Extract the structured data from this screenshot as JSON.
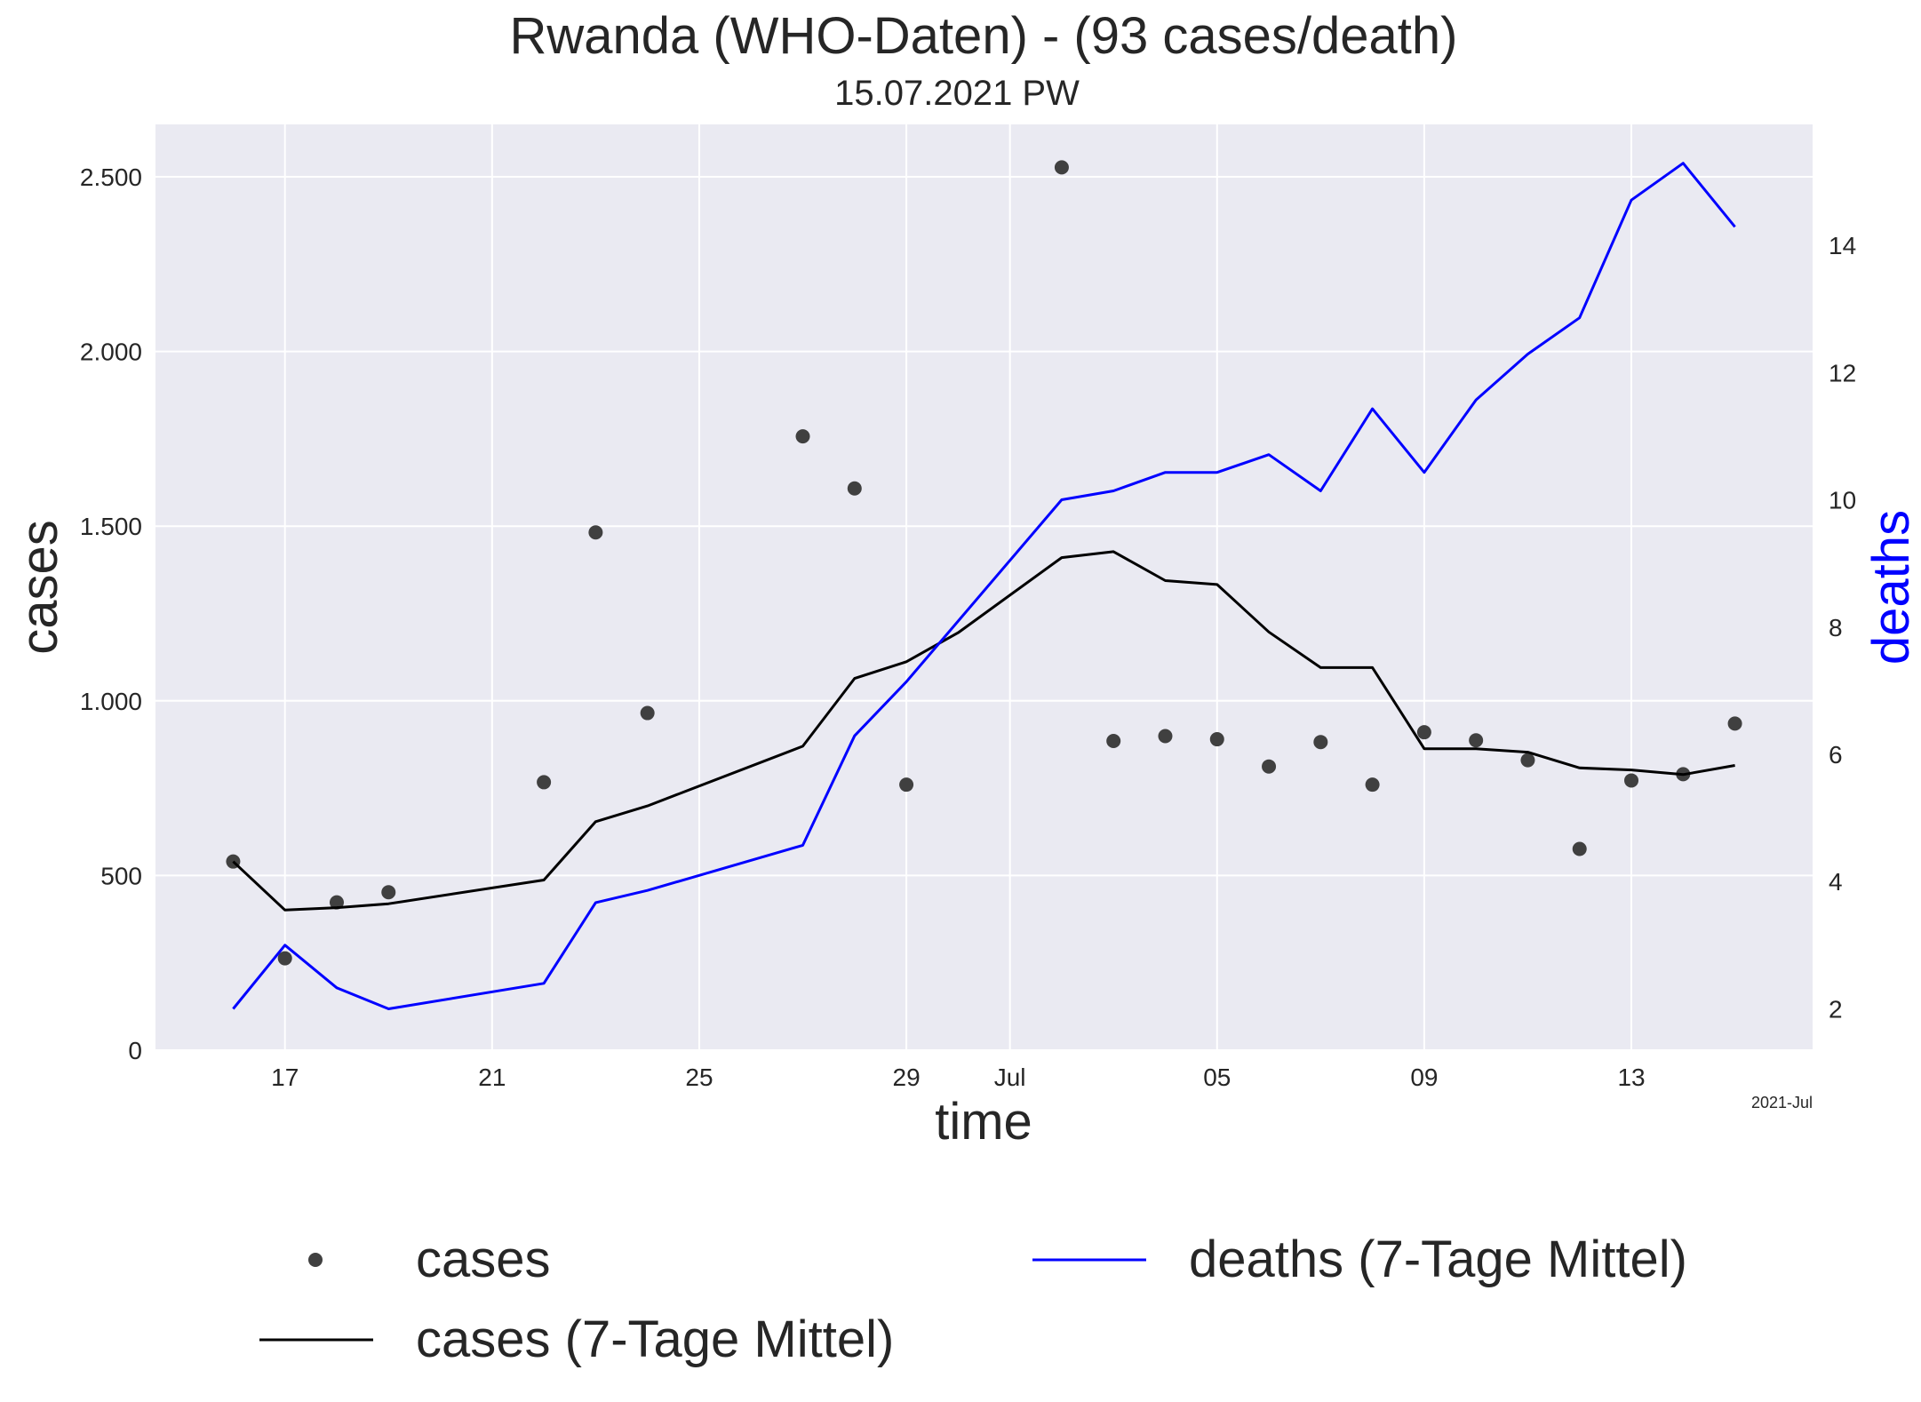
{
  "chart_data": {
    "type": "line",
    "title": "Rwanda (WHO-Daten) - (93 cases/death)",
    "subtitle": "15.07.2021 PW",
    "xlabel": "time",
    "ylabel": "cases",
    "ylabel_right": "deaths",
    "x_offset_text": "2021-Jul",
    "x_ticks": [
      {
        "date": "2021-06-17",
        "label": "17"
      },
      {
        "date": "2021-06-21",
        "label": "21"
      },
      {
        "date": "2021-06-25",
        "label": "25"
      },
      {
        "date": "2021-06-29",
        "label": "29"
      },
      {
        "date": "2021-07-01",
        "label": "Jul"
      },
      {
        "date": "2021-07-05",
        "label": "05"
      },
      {
        "date": "2021-07-09",
        "label": "09"
      },
      {
        "date": "2021-07-13",
        "label": "13"
      }
    ],
    "x_range": [
      "2021-06-14T12:00",
      "2021-07-16T12:00"
    ],
    "y_left": {
      "min": 0,
      "max": 2650,
      "ticks": [
        0,
        500,
        1000,
        1500,
        2000,
        2500
      ],
      "tick_labels": [
        "0",
        "500",
        "1.000",
        "1.500",
        "2.000",
        "2.500"
      ]
    },
    "y_right": {
      "min": 1.35,
      "max": 15.9,
      "ticks": [
        2,
        4,
        6,
        8,
        10,
        12,
        14
      ],
      "tick_labels": [
        "2",
        "4",
        "6",
        "8",
        "10",
        "12",
        "14"
      ]
    },
    "grid": true,
    "legend_position": "below the plot",
    "series": [
      {
        "name": "cases",
        "kind": "scatter",
        "axis": "left",
        "color": "#404040",
        "points": [
          {
            "x": "2021-06-16",
            "y": 540
          },
          {
            "x": "2021-06-17",
            "y": 263
          },
          {
            "x": "2021-06-18",
            "y": 423
          },
          {
            "x": "2021-06-19",
            "y": 452
          },
          {
            "x": "2021-06-22",
            "y": 767
          },
          {
            "x": "2021-06-23",
            "y": 1482
          },
          {
            "x": "2021-06-24",
            "y": 965
          },
          {
            "x": "2021-06-27",
            "y": 1757
          },
          {
            "x": "2021-06-28",
            "y": 1608
          },
          {
            "x": "2021-06-29",
            "y": 760
          },
          {
            "x": "2021-07-02",
            "y": 2527
          },
          {
            "x": "2021-07-03",
            "y": 885
          },
          {
            "x": "2021-07-04",
            "y": 899
          },
          {
            "x": "2021-07-05",
            "y": 890
          },
          {
            "x": "2021-07-06",
            "y": 812
          },
          {
            "x": "2021-07-07",
            "y": 882
          },
          {
            "x": "2021-07-08",
            "y": 760
          },
          {
            "x": "2021-07-09",
            "y": 910
          },
          {
            "x": "2021-07-10",
            "y": 887
          },
          {
            "x": "2021-07-11",
            "y": 830
          },
          {
            "x": "2021-07-12",
            "y": 576
          },
          {
            "x": "2021-07-13",
            "y": 772
          },
          {
            "x": "2021-07-14",
            "y": 790
          },
          {
            "x": "2021-07-15",
            "y": 935
          }
        ]
      },
      {
        "name": "cases (7-Tage Mittel)",
        "kind": "line",
        "axis": "left",
        "color": "#000000",
        "points": [
          {
            "x": "2021-06-16",
            "y": 540
          },
          {
            "x": "2021-06-17",
            "y": 401
          },
          {
            "x": "2021-06-18",
            "y": 408
          },
          {
            "x": "2021-06-19",
            "y": 419
          },
          {
            "x": "2021-06-22",
            "y": 487
          },
          {
            "x": "2021-06-23",
            "y": 654
          },
          {
            "x": "2021-06-24",
            "y": 699
          },
          {
            "x": "2021-06-27",
            "y": 870
          },
          {
            "x": "2021-06-28",
            "y": 1064
          },
          {
            "x": "2021-06-29",
            "y": 1112
          },
          {
            "x": "2021-06-30",
            "y": 1195
          },
          {
            "x": "2021-07-02",
            "y": 1410
          },
          {
            "x": "2021-07-03",
            "y": 1427
          },
          {
            "x": "2021-07-04",
            "y": 1344
          },
          {
            "x": "2021-07-05",
            "y": 1333
          },
          {
            "x": "2021-07-06",
            "y": 1197
          },
          {
            "x": "2021-07-07",
            "y": 1095
          },
          {
            "x": "2021-07-08",
            "y": 1095
          },
          {
            "x": "2021-07-09",
            "y": 863
          },
          {
            "x": "2021-07-10",
            "y": 863
          },
          {
            "x": "2021-07-11",
            "y": 853
          },
          {
            "x": "2021-07-12",
            "y": 808
          },
          {
            "x": "2021-07-13",
            "y": 802
          },
          {
            "x": "2021-07-14",
            "y": 789
          },
          {
            "x": "2021-07-15",
            "y": 815
          }
        ]
      },
      {
        "name": "deaths (7-Tage Mittel)",
        "kind": "line",
        "axis": "right",
        "color": "#0000ff",
        "points": [
          {
            "x": "2021-06-16",
            "y": 2.0
          },
          {
            "x": "2021-06-17",
            "y": 3.0
          },
          {
            "x": "2021-06-18",
            "y": 2.33
          },
          {
            "x": "2021-06-19",
            "y": 2.0
          },
          {
            "x": "2021-06-22",
            "y": 2.4
          },
          {
            "x": "2021-06-23",
            "y": 3.67
          },
          {
            "x": "2021-06-24",
            "y": 3.86
          },
          {
            "x": "2021-06-27",
            "y": 4.57
          },
          {
            "x": "2021-06-28",
            "y": 6.29
          },
          {
            "x": "2021-06-29",
            "y": 7.14
          },
          {
            "x": "2021-07-02",
            "y": 10.0
          },
          {
            "x": "2021-07-03",
            "y": 10.14
          },
          {
            "x": "2021-07-04",
            "y": 10.43
          },
          {
            "x": "2021-07-05",
            "y": 10.43
          },
          {
            "x": "2021-07-06",
            "y": 10.71
          },
          {
            "x": "2021-07-07",
            "y": 10.14
          },
          {
            "x": "2021-07-08",
            "y": 11.43
          },
          {
            "x": "2021-07-09",
            "y": 10.43
          },
          {
            "x": "2021-07-10",
            "y": 11.57
          },
          {
            "x": "2021-07-11",
            "y": 12.29
          },
          {
            "x": "2021-07-12",
            "y": 12.86
          },
          {
            "x": "2021-07-13",
            "y": 14.71
          },
          {
            "x": "2021-07-14",
            "y": 15.29
          },
          {
            "x": "2021-07-15",
            "y": 14.29
          }
        ]
      }
    ]
  }
}
